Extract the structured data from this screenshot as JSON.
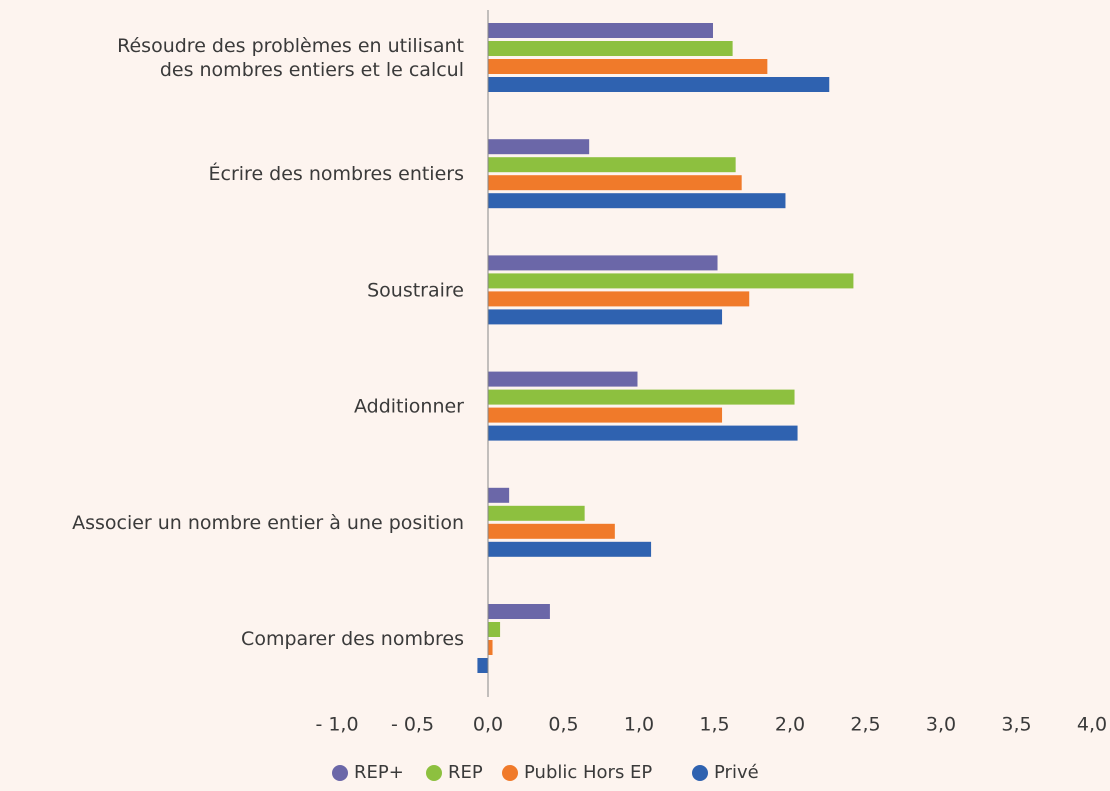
{
  "chart_data": {
    "type": "barh",
    "categories": [
      "Résoudre des problèmes en utilisant\ndes nombres entiers et le calcul",
      "Écrire des nombres entiers",
      "Soustraire",
      "Additionner",
      "Associer un nombre entier à une position",
      "Comparer des nombres"
    ],
    "series": [
      {
        "name": "REP+",
        "color": "#6b67a8",
        "values": [
          1.49,
          0.67,
          1.52,
          0.99,
          0.14,
          0.41
        ]
      },
      {
        "name": "REP",
        "color": "#8dc03f",
        "values": [
          1.62,
          1.64,
          2.42,
          2.03,
          0.64,
          0.08
        ]
      },
      {
        "name": "Public Hors EP",
        "color": "#f07a2a",
        "values": [
          1.85,
          1.68,
          1.73,
          1.55,
          0.84,
          0.03
        ]
      },
      {
        "name": "Privé",
        "color": "#2f62b0",
        "values": [
          2.26,
          1.97,
          1.55,
          2.05,
          1.08,
          -0.07
        ]
      }
    ],
    "xlim": [
      -1,
      4
    ],
    "xticks": [
      {
        "value": -1,
        "label": "- 1,0"
      },
      {
        "value": -0.5,
        "label": "- 0,5"
      },
      {
        "value": 0,
        "label": "0,0"
      },
      {
        "value": 0.5,
        "label": "0,5"
      },
      {
        "value": 1,
        "label": "1,0"
      },
      {
        "value": 1.5,
        "label": "1,5"
      },
      {
        "value": 2,
        "label": "2,0"
      },
      {
        "value": 2.5,
        "label": "2,5"
      },
      {
        "value": 3,
        "label": "3,0"
      },
      {
        "value": 3.5,
        "label": "3,5"
      },
      {
        "value": 4,
        "label": "4,0"
      }
    ],
    "legend": "bottom"
  }
}
